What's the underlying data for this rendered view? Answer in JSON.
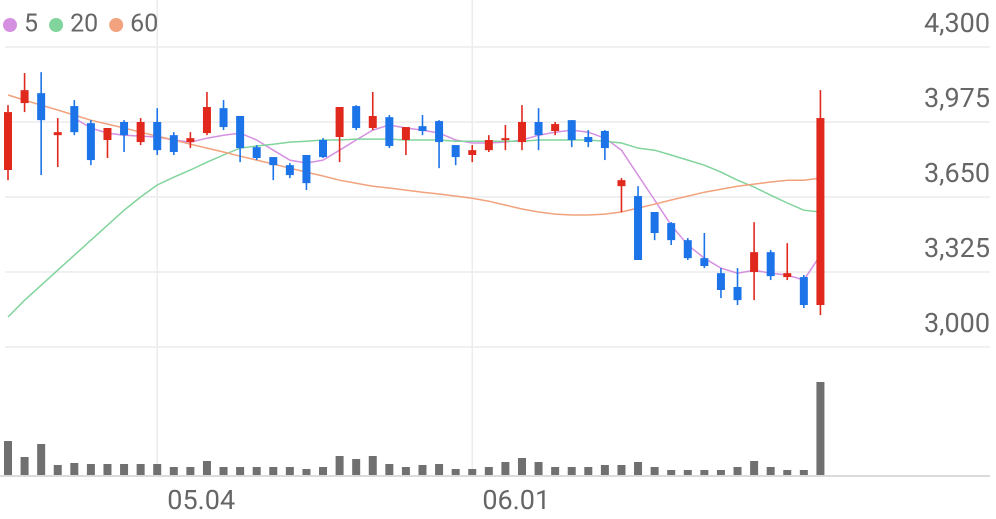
{
  "chart_data": {
    "type": "candlestick",
    "categories": [
      null,
      null,
      null,
      null,
      null,
      null,
      null,
      null,
      null,
      "05.04",
      null,
      null,
      null,
      null,
      null,
      null,
      null,
      null,
      null,
      null,
      null,
      null,
      null,
      null,
      null,
      null,
      null,
      null,
      "06.01",
      null,
      null,
      null,
      null,
      null,
      null,
      null,
      null,
      null,
      null,
      null,
      null,
      null,
      null,
      null,
      null,
      null,
      null,
      null,
      null,
      null
    ],
    "ylim": [
      3000,
      4300
    ],
    "yticks": [
      {
        "value": 3000,
        "label": "3,000"
      },
      {
        "value": 3325,
        "label": "3,325"
      },
      {
        "value": 3650,
        "label": "3,650"
      },
      {
        "value": 3975,
        "label": "3,975"
      },
      {
        "value": 4300,
        "label": "4,300"
      }
    ],
    "grid": true,
    "up_color": "#e0281c",
    "down_color": "#1c74e8",
    "open": [
      3767,
      4057,
      4100,
      3918,
      4044,
      3970,
      3897,
      3975,
      3888,
      3975,
      3918,
      3888,
      3927,
      4035,
      4001,
      3866,
      3823,
      3788,
      3832,
      3897,
      3910,
      4044,
      3949,
      3996,
      3897,
      3957,
      3979,
      3875,
      3832,
      3853,
      3897,
      3888,
      3975,
      3936,
      3983,
      3910,
      3936,
      3697,
      3654,
      3585,
      3537,
      3463,
      3385,
      3320,
      3260,
      3325,
      3411,
      3303,
      3303,
      3182
    ],
    "high": [
      4048,
      4187,
      4191,
      3992,
      4070,
      3983,
      3949,
      3983,
      3992,
      4035,
      3931,
      3931,
      4105,
      4070,
      4001,
      3875,
      3823,
      3797,
      3832,
      3905,
      4040,
      4048,
      4105,
      4005,
      3953,
      4005,
      3983,
      3875,
      3875,
      3918,
      3962,
      4048,
      4035,
      3975,
      3983,
      3940,
      3940,
      3732,
      3697,
      3585,
      3541,
      3472,
      3494,
      3342,
      3342,
      3541,
      3420,
      3450,
      3312,
      4113
    ],
    "low": [
      3723,
      4018,
      3745,
      3780,
      3918,
      3788,
      3819,
      3845,
      3875,
      3832,
      3832,
      3862,
      3918,
      3940,
      3801,
      3810,
      3723,
      3732,
      3680,
      3819,
      3801,
      3940,
      3940,
      3862,
      3832,
      3918,
      3775,
      3788,
      3801,
      3845,
      3853,
      3853,
      3853,
      3918,
      3866,
      3866,
      3810,
      3585,
      3377,
      3463,
      3442,
      3377,
      3342,
      3212,
      3182,
      3203,
      3290,
      3290,
      3169,
      3138
    ],
    "close": [
      4018,
      4113,
      3983,
      3931,
      3931,
      3810,
      3949,
      3918,
      3975,
      3853,
      3845,
      3905,
      4040,
      3953,
      3862,
      3819,
      3788,
      3745,
      3710,
      3823,
      4040,
      3949,
      4001,
      3871,
      3953,
      3936,
      3888,
      3823,
      3853,
      3897,
      3905,
      3975,
      3918,
      3966,
      3897,
      3888,
      3862,
      3723,
      3377,
      3494,
      3463,
      3385,
      3351,
      3247,
      3203,
      3411,
      3307,
      3320,
      3182,
      3992
    ],
    "volume": [
      34,
      18,
      31,
      10,
      12,
      11,
      11,
      11,
      11,
      11,
      8,
      8,
      14,
      8,
      8,
      8,
      8,
      8,
      6,
      8,
      19,
      16,
      19,
      11,
      8,
      10,
      11,
      6,
      6,
      8,
      13,
      17,
      13,
      8,
      8,
      8,
      10,
      10,
      13,
      8,
      5,
      5,
      5,
      5,
      8,
      14,
      8,
      5,
      5,
      93
    ],
    "volume_color": "#707070",
    "series": [
      {
        "name": "5",
        "color": "#d690e2",
        "values": [
          null,
          null,
          null,
          null,
          3992,
          3949,
          3927,
          3918,
          3914,
          3910,
          3897,
          3888,
          3905,
          3918,
          3927,
          3897,
          3853,
          3810,
          3797,
          3810,
          3853,
          3897,
          3940,
          3962,
          3949,
          3940,
          3927,
          3897,
          3884,
          3884,
          3888,
          3897,
          3918,
          3931,
          3940,
          3931,
          3905,
          3853,
          3745,
          3637,
          3528,
          3442,
          3385,
          3342,
          3320,
          3333,
          3320,
          3312,
          3290,
          3398
        ]
      },
      {
        "name": "20",
        "color": "#80d49c",
        "values": [
          3130,
          3203,
          3268,
          3333,
          3398,
          3463,
          3528,
          3593,
          3650,
          3702,
          3736,
          3767,
          3801,
          3832,
          3862,
          3871,
          3879,
          3888,
          3892,
          3897,
          3897,
          3901,
          3901,
          3901,
          3897,
          3897,
          3897,
          3892,
          3892,
          3892,
          3892,
          3892,
          3897,
          3897,
          3897,
          3897,
          3892,
          3884,
          3862,
          3853,
          3832,
          3810,
          3788,
          3758,
          3723,
          3693,
          3658,
          3624,
          3593,
          3585
        ]
      },
      {
        "name": "60",
        "color": "#f2a27c",
        "values": [
          4092,
          4070,
          4048,
          4027,
          4005,
          3983,
          3966,
          3949,
          3931,
          3914,
          3897,
          3879,
          3862,
          3845,
          3827,
          3810,
          3793,
          3775,
          3758,
          3741,
          3723,
          3710,
          3697,
          3689,
          3680,
          3671,
          3663,
          3654,
          3645,
          3632,
          3615,
          3598,
          3585,
          3576,
          3572,
          3572,
          3576,
          3585,
          3602,
          3619,
          3637,
          3654,
          3671,
          3684,
          3697,
          3706,
          3715,
          3723,
          3723,
          3732
        ]
      }
    ]
  }
}
